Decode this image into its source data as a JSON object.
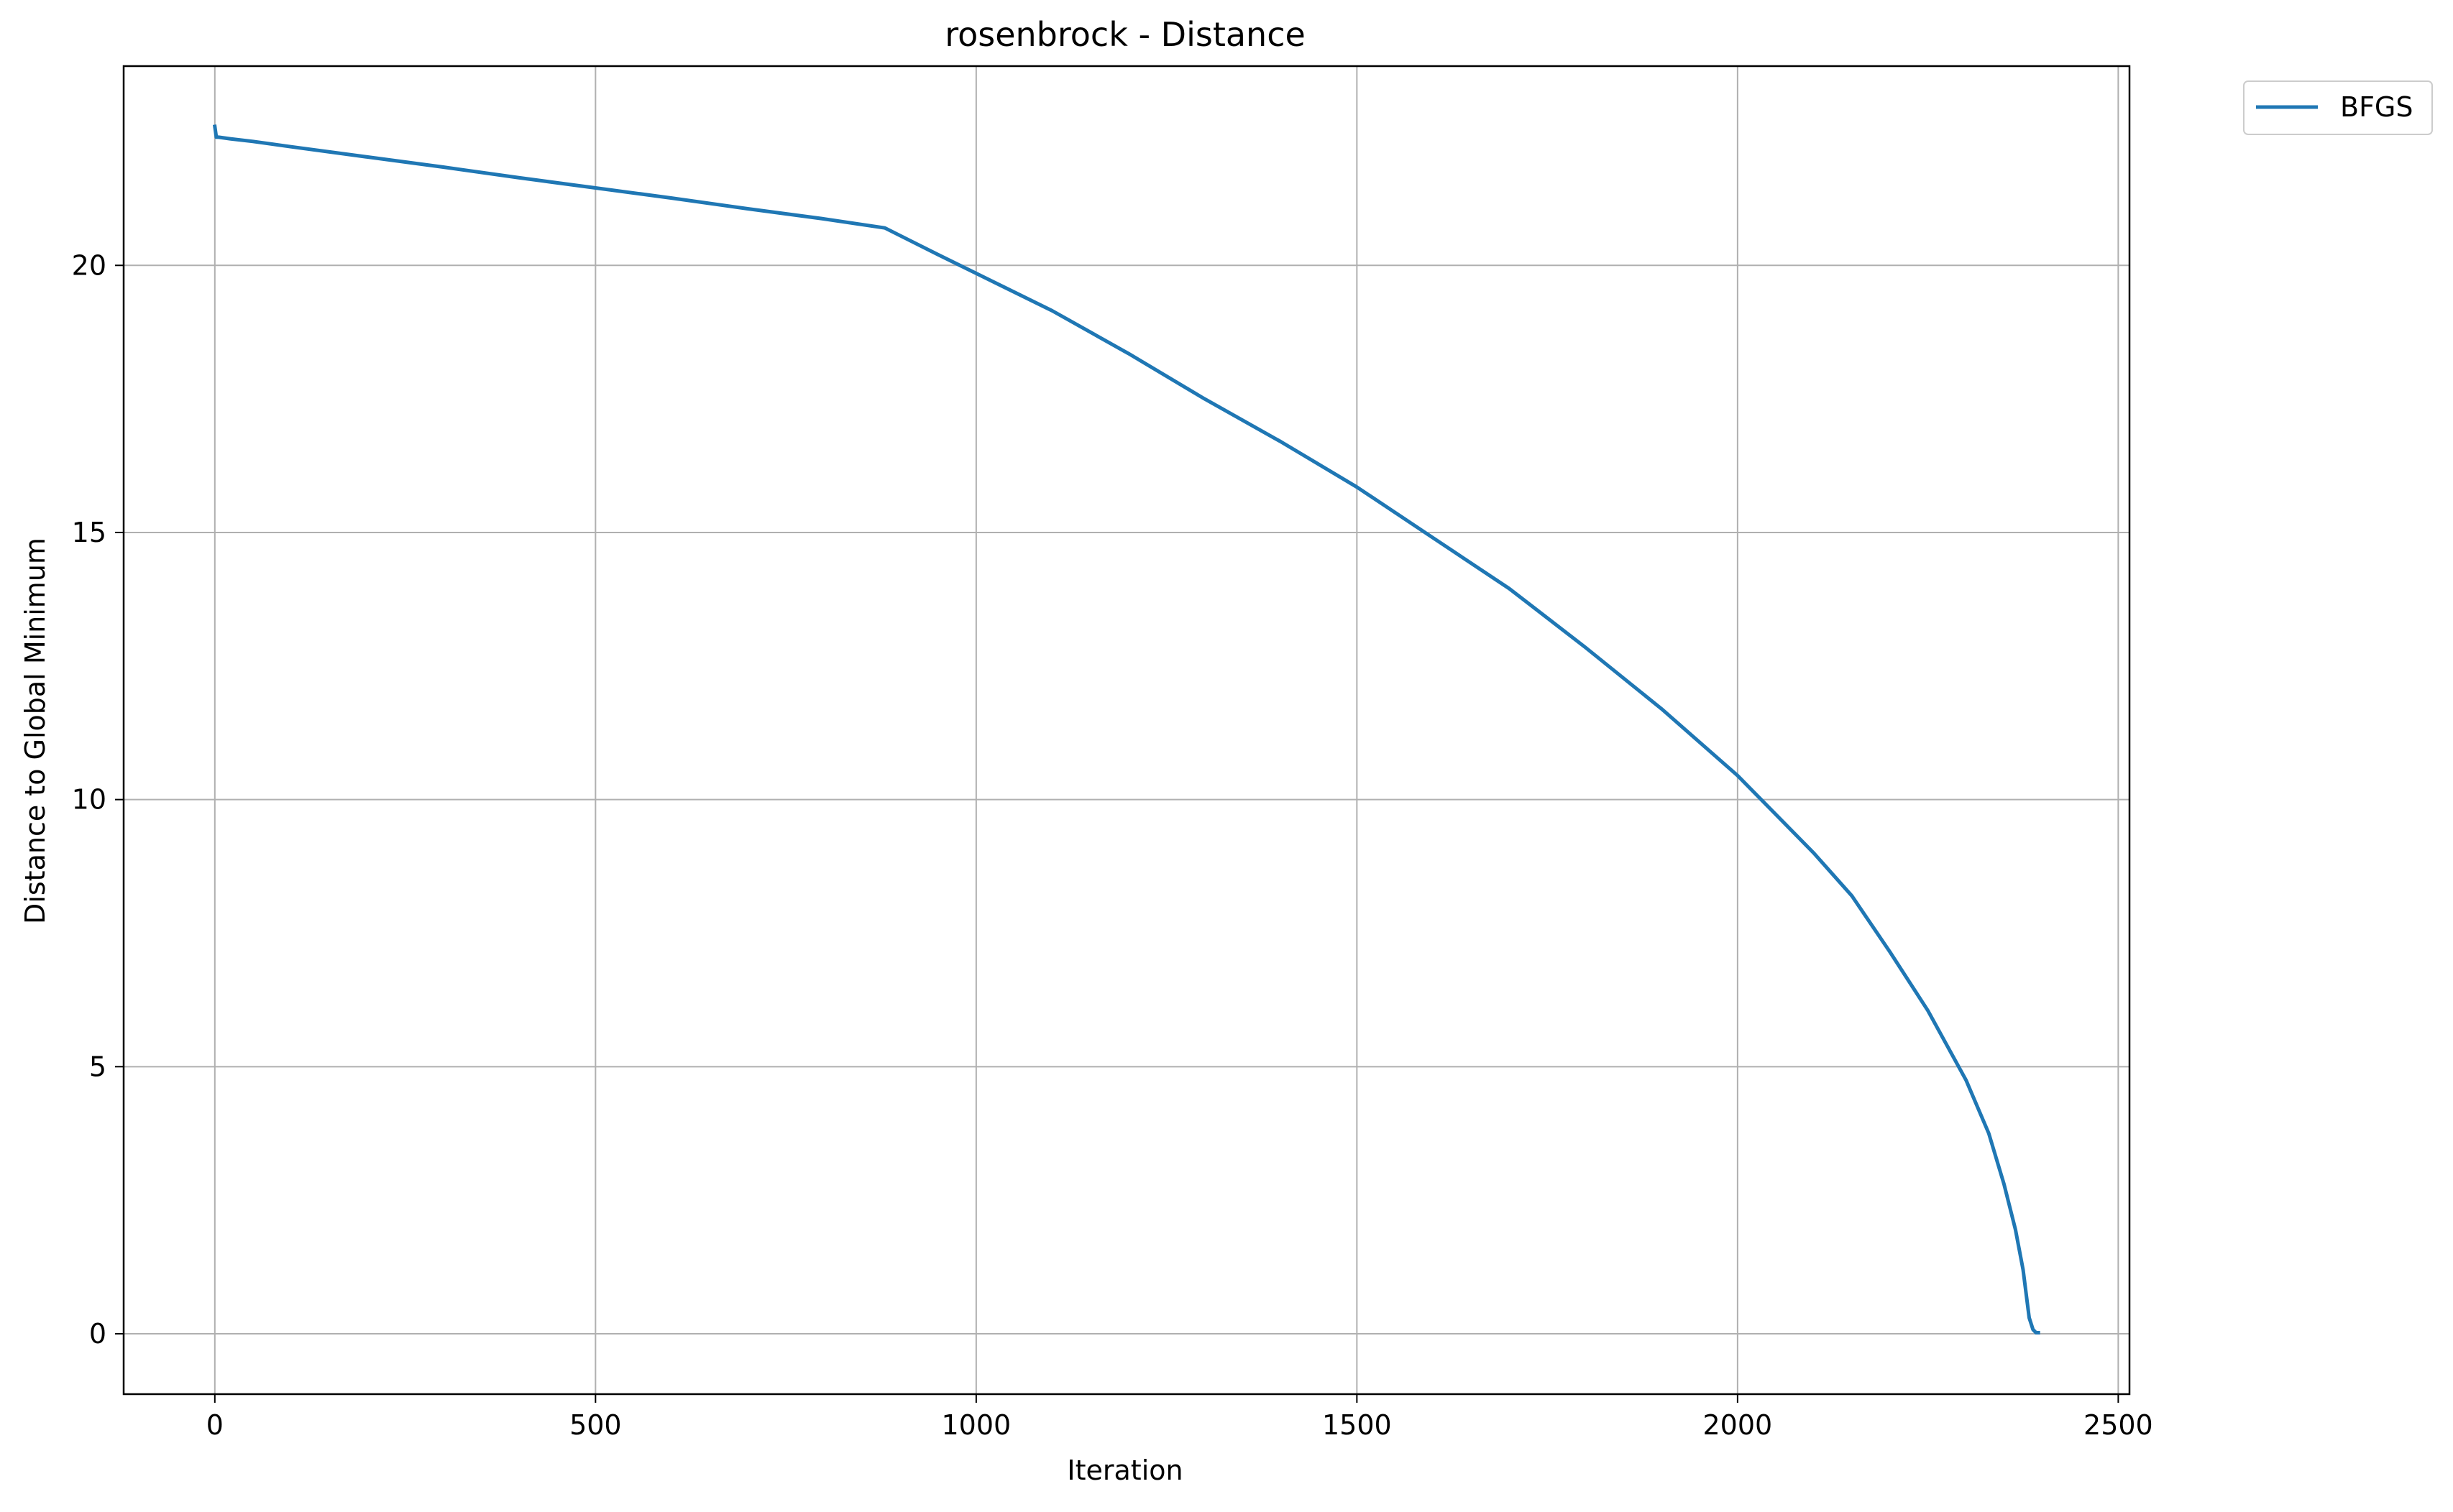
{
  "chart_data": {
    "type": "line",
    "title": "rosenbrock - Distance",
    "xlabel": "Iteration",
    "ylabel": "Distance to Global Minimum",
    "xlim": [
      -119.75,
      2514.75
    ],
    "ylim": [
      -1.13,
      23.73
    ],
    "xticks": [
      0,
      500,
      1000,
      1500,
      2000,
      2500
    ],
    "xtick_labels": [
      "0",
      "500",
      "1000",
      "1500",
      "2000",
      "2500"
    ],
    "yticks": [
      0,
      5,
      10,
      15,
      20
    ],
    "ytick_labels": [
      "0",
      "5",
      "10",
      "15",
      "20"
    ],
    "grid": true,
    "legend": {
      "position": "outside-top-right"
    },
    "colors": {
      "series": "#1f77b4",
      "grid": "#b0b0b0",
      "axes": "#000000"
    },
    "series": [
      {
        "name": "BFGS",
        "x": [
          0,
          2,
          5,
          20,
          50,
          100,
          200,
          300,
          400,
          500,
          600,
          700,
          800,
          880,
          950,
          1000,
          1100,
          1200,
          1300,
          1400,
          1500,
          1600,
          1700,
          1800,
          1900,
          2000,
          2100,
          2150,
          2200,
          2250,
          2300,
          2330,
          2350,
          2365,
          2375,
          2383,
          2388,
          2392,
          2395
        ],
        "y": [
          22.6,
          22.4,
          22.4,
          22.37,
          22.32,
          22.22,
          22.03,
          21.84,
          21.64,
          21.45,
          21.26,
          21.06,
          20.87,
          20.7,
          20.2,
          19.85,
          19.15,
          18.35,
          17.5,
          16.7,
          15.85,
          14.9,
          13.95,
          12.85,
          11.7,
          10.45,
          9.0,
          8.2,
          7.15,
          6.05,
          4.75,
          3.75,
          2.8,
          1.95,
          1.2,
          0.3,
          0.08,
          0.02,
          0.02
        ]
      }
    ]
  }
}
